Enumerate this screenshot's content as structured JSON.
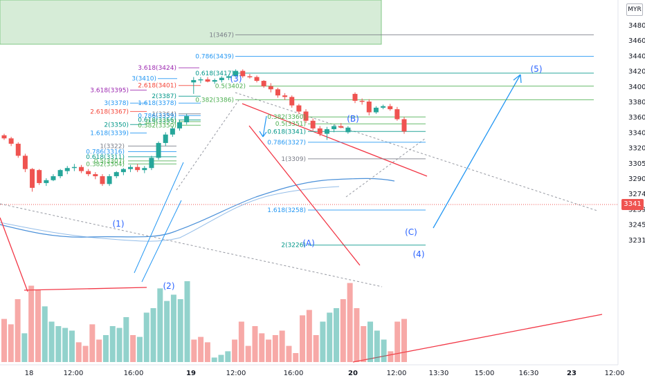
{
  "currency": "MYR",
  "last_price_label": "3341",
  "chart_data": {
    "type": "candlestick",
    "ylim": [
      3226,
      3490
    ],
    "y_ticks": [
      "3480",
      "3460",
      "3440",
      "3420",
      "3400",
      "3380",
      "3360",
      "3340",
      "3320",
      "3305",
      "3290",
      "3274",
      "3259",
      "3245",
      "3231"
    ],
    "x_ticks": [
      "18",
      "12:00",
      "16:00",
      "19",
      "12:00",
      "16:00",
      "20",
      "12:00",
      "13:30",
      "15:00",
      "16:30",
      "23",
      "12:00"
    ],
    "candles": [
      {
        "o": 3336,
        "h": 3338,
        "l": 3330,
        "c": 3332
      },
      {
        "o": 3332,
        "h": 3334,
        "l": 3322,
        "c": 3325
      },
      {
        "o": 3325,
        "h": 3327,
        "l": 3310,
        "c": 3312
      },
      {
        "o": 3312,
        "h": 3314,
        "l": 3296,
        "c": 3299
      },
      {
        "o": 3299,
        "h": 3300,
        "l": 3276,
        "c": 3280
      },
      {
        "o": 3298,
        "h": 3299,
        "l": 3283,
        "c": 3285
      },
      {
        "o": 3285,
        "h": 3290,
        "l": 3282,
        "c": 3288
      },
      {
        "o": 3288,
        "h": 3294,
        "l": 3287,
        "c": 3292
      },
      {
        "o": 3292,
        "h": 3299,
        "l": 3290,
        "c": 3298
      },
      {
        "o": 3297,
        "h": 3302,
        "l": 3294,
        "c": 3300
      },
      {
        "o": 3300,
        "h": 3304,
        "l": 3297,
        "c": 3301
      },
      {
        "o": 3301,
        "h": 3303,
        "l": 3295,
        "c": 3297
      },
      {
        "o": 3297,
        "h": 3299,
        "l": 3292,
        "c": 3294
      },
      {
        "o": 3294,
        "h": 3296,
        "l": 3289,
        "c": 3292
      },
      {
        "o": 3292,
        "h": 3294,
        "l": 3282,
        "c": 3284
      },
      {
        "o": 3284,
        "h": 3294,
        "l": 3282,
        "c": 3292
      },
      {
        "o": 3292,
        "h": 3297,
        "l": 3290,
        "c": 3296
      },
      {
        "o": 3296,
        "h": 3300,
        "l": 3293,
        "c": 3299
      },
      {
        "o": 3299,
        "h": 3303,
        "l": 3296,
        "c": 3301
      },
      {
        "o": 3301,
        "h": 3304,
        "l": 3296,
        "c": 3298
      },
      {
        "o": 3298,
        "h": 3302,
        "l": 3295,
        "c": 3300
      },
      {
        "o": 3300,
        "h": 3312,
        "l": 3298,
        "c": 3310
      },
      {
        "o": 3310,
        "h": 3328,
        "l": 3308,
        "c": 3326
      },
      {
        "o": 3326,
        "h": 3340,
        "l": 3322,
        "c": 3337
      },
      {
        "o": 3337,
        "h": 3348,
        "l": 3334,
        "c": 3345
      },
      {
        "o": 3345,
        "h": 3356,
        "l": 3342,
        "c": 3353
      },
      {
        "o": 3353,
        "h": 3364,
        "l": 3350,
        "c": 3361
      },
      {
        "o": 3405,
        "h": 3412,
        "l": 3390,
        "c": 3408
      },
      {
        "o": 3408,
        "h": 3412,
        "l": 3404,
        "c": 3409
      },
      {
        "o": 3409,
        "h": 3412,
        "l": 3405,
        "c": 3406
      },
      {
        "o": 3406,
        "h": 3410,
        "l": 3403,
        "c": 3408
      },
      {
        "o": 3408,
        "h": 3413,
        "l": 3405,
        "c": 3411
      },
      {
        "o": 3411,
        "h": 3415,
        "l": 3408,
        "c": 3413
      },
      {
        "o": 3413,
        "h": 3422,
        "l": 3412,
        "c": 3420
      },
      {
        "o": 3420,
        "h": 3422,
        "l": 3411,
        "c": 3413
      },
      {
        "o": 3413,
        "h": 3416,
        "l": 3410,
        "c": 3412
      },
      {
        "o": 3412,
        "h": 3414,
        "l": 3405,
        "c": 3407
      },
      {
        "o": 3407,
        "h": 3408,
        "l": 3398,
        "c": 3400
      },
      {
        "o": 3400,
        "h": 3404,
        "l": 3392,
        "c": 3396
      },
      {
        "o": 3396,
        "h": 3398,
        "l": 3385,
        "c": 3388
      },
      {
        "o": 3388,
        "h": 3391,
        "l": 3382,
        "c": 3386
      },
      {
        "o": 3386,
        "h": 3388,
        "l": 3372,
        "c": 3375
      },
      {
        "o": 3375,
        "h": 3377,
        "l": 3364,
        "c": 3367
      },
      {
        "o": 3367,
        "h": 3370,
        "l": 3352,
        "c": 3355
      },
      {
        "o": 3355,
        "h": 3358,
        "l": 3342,
        "c": 3345
      },
      {
        "o": 3345,
        "h": 3348,
        "l": 3335,
        "c": 3338
      },
      {
        "o": 3338,
        "h": 3347,
        "l": 3330,
        "c": 3344
      },
      {
        "o": 3344,
        "h": 3350,
        "l": 3340,
        "c": 3348
      },
      {
        "o": 3348,
        "h": 3352,
        "l": 3345,
        "c": 3346
      },
      {
        "o": 3340,
        "h": 3348,
        "l": 3338,
        "c": 3346
      },
      {
        "o": 3390,
        "h": 3392,
        "l": 3378,
        "c": 3381
      },
      {
        "o": 3381,
        "h": 3384,
        "l": 3376,
        "c": 3380
      },
      {
        "o": 3380,
        "h": 3383,
        "l": 3362,
        "c": 3366
      },
      {
        "o": 3366,
        "h": 3374,
        "l": 3364,
        "c": 3372
      },
      {
        "o": 3372,
        "h": 3376,
        "l": 3370,
        "c": 3374
      },
      {
        "o": 3374,
        "h": 3377,
        "l": 3368,
        "c": 3370
      },
      {
        "o": 3370,
        "h": 3373,
        "l": 3355,
        "c": 3357
      },
      {
        "o": 3357,
        "h": 3360,
        "l": 3338,
        "c": 3341
      }
    ],
    "volume_max": 100,
    "volumes": [
      {
        "v": 48,
        "up": false
      },
      {
        "v": 42,
        "up": false
      },
      {
        "v": 70,
        "up": false
      },
      {
        "v": 32,
        "up": true
      },
      {
        "v": 85,
        "up": false
      },
      {
        "v": 80,
        "up": false
      },
      {
        "v": 62,
        "up": true
      },
      {
        "v": 45,
        "up": true
      },
      {
        "v": 40,
        "up": true
      },
      {
        "v": 38,
        "up": true
      },
      {
        "v": 35,
        "up": true
      },
      {
        "v": 22,
        "up": false
      },
      {
        "v": 18,
        "up": false
      },
      {
        "v": 42,
        "up": false
      },
      {
        "v": 25,
        "up": false
      },
      {
        "v": 30,
        "up": true
      },
      {
        "v": 40,
        "up": true
      },
      {
        "v": 38,
        "up": true
      },
      {
        "v": 50,
        "up": true
      },
      {
        "v": 30,
        "up": false
      },
      {
        "v": 28,
        "up": true
      },
      {
        "v": 55,
        "up": true
      },
      {
        "v": 60,
        "up": true
      },
      {
        "v": 82,
        "up": true
      },
      {
        "v": 68,
        "up": true
      },
      {
        "v": 75,
        "up": true
      },
      {
        "v": 70,
        "up": true
      },
      {
        "v": 90,
        "up": true
      },
      {
        "v": 25,
        "up": false
      },
      {
        "v": 28,
        "up": false
      },
      {
        "v": 22,
        "up": false
      },
      {
        "v": 5,
        "up": true
      },
      {
        "v": 8,
        "up": true
      },
      {
        "v": 12,
        "up": true
      },
      {
        "v": 25,
        "up": false
      },
      {
        "v": 45,
        "up": false
      },
      {
        "v": 18,
        "up": false
      },
      {
        "v": 40,
        "up": false
      },
      {
        "v": 32,
        "up": false
      },
      {
        "v": 25,
        "up": false
      },
      {
        "v": 30,
        "up": false
      },
      {
        "v": 35,
        "up": false
      },
      {
        "v": 18,
        "up": false
      },
      {
        "v": 10,
        "up": false
      },
      {
        "v": 52,
        "up": false
      },
      {
        "v": 58,
        "up": false
      },
      {
        "v": 30,
        "up": false
      },
      {
        "v": 45,
        "up": true
      },
      {
        "v": 55,
        "up": true
      },
      {
        "v": 60,
        "up": true
      },
      {
        "v": 70,
        "up": false
      },
      {
        "v": 88,
        "up": false
      },
      {
        "v": 60,
        "up": false
      },
      {
        "v": 40,
        "up": false
      },
      {
        "v": 45,
        "up": true
      },
      {
        "v": 35,
        "up": true
      },
      {
        "v": 25,
        "up": true
      },
      {
        "v": 12,
        "up": false
      },
      {
        "v": 45,
        "up": false
      },
      {
        "v": 48,
        "up": false
      }
    ],
    "fib_labels": [
      {
        "text": "1(3467)",
        "price": 3467,
        "color": "#787b86"
      },
      {
        "text": "0.786(3439)",
        "price": 3439,
        "color": "#2196f3"
      },
      {
        "text": "3.618(3424)",
        "price": 3424,
        "color": "#9c27b0"
      },
      {
        "text": "0.618(3417)",
        "price": 3417,
        "color": "#009688"
      },
      {
        "text": "3(3410)",
        "price": 3410,
        "color": "#2196f3"
      },
      {
        "text": "2.618(3401)",
        "price": 3401,
        "color": "#f44336"
      },
      {
        "text": "0.5(3402)",
        "price": 3402,
        "color": "#4caf50"
      },
      {
        "text": "3.618(3395)",
        "price": 3395,
        "color": "#9c27b0"
      },
      {
        "text": "2(3387)",
        "price": 3387,
        "color": "#009688"
      },
      {
        "text": "0.382(3386)",
        "price": 3386,
        "color": "#4caf50"
      },
      {
        "text": "3(3378)",
        "price": 3378,
        "color": "#2196f3"
      },
      {
        "text": "1.618(3378)",
        "price": 3378,
        "color": "#2196f3"
      },
      {
        "text": "2.618(3367)",
        "price": 3367,
        "color": "#f44336"
      },
      {
        "text": "1(3364)",
        "price": 3364,
        "color": "#787b86"
      },
      {
        "text": "0.786(3359)",
        "price": 3359,
        "color": "#2196f3"
      },
      {
        "text": "0.618(3356)",
        "price": 3356,
        "color": "#009688"
      },
      {
        "text": "0.5(3353)",
        "price": 3353,
        "color": "#4caf50"
      },
      {
        "text": "0.382(3350)",
        "price": 3350,
        "color": "#4caf50"
      },
      {
        "text": "2(3350)",
        "price": 3350,
        "color": "#009688"
      },
      {
        "text": "0.382(3360)",
        "price": 3360,
        "color": "#4caf50"
      },
      {
        "text": "0.5(3351)",
        "price": 3351,
        "color": "#4caf50"
      },
      {
        "text": "1.618(3339)",
        "price": 3339,
        "color": "#2196f3"
      },
      {
        "text": "0.618(3341)",
        "price": 3341,
        "color": "#009688"
      },
      {
        "text": "0.786(3327)",
        "price": 3327,
        "color": "#2196f3"
      },
      {
        "text": "1(3322)",
        "price": 3322,
        "color": "#787b86"
      },
      {
        "text": "0.786(3316)",
        "price": 3316,
        "color": "#2196f3"
      },
      {
        "text": "0.618(3311)",
        "price": 3311,
        "color": "#009688"
      },
      {
        "text": "0.5(3307)",
        "price": 3307,
        "color": "#4caf50"
      },
      {
        "text": "0.382(3304)",
        "price": 3304,
        "color": "#4caf50"
      },
      {
        "text": "1(3309)",
        "price": 3309,
        "color": "#787b86"
      },
      {
        "text": "1.618(3258)",
        "price": 3258,
        "color": "#2196f3"
      },
      {
        "text": "2(3226)",
        "price": 3226,
        "color": "#009688"
      }
    ],
    "wave_labels": [
      "(1)",
      "(2)",
      "(3)",
      "(4)",
      "(5)",
      "(A)",
      "(B)",
      "(C)"
    ]
  }
}
